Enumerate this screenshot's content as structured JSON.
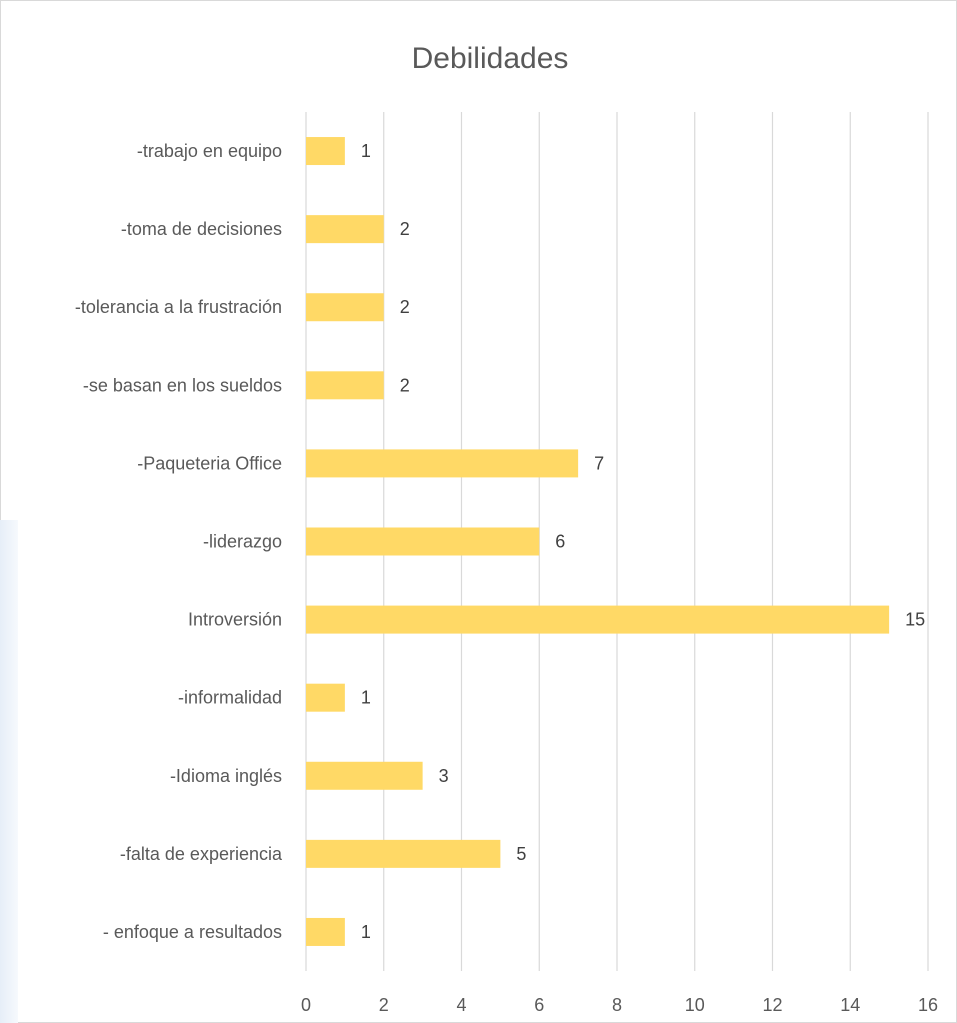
{
  "chart_data": {
    "type": "bar",
    "orientation": "horizontal",
    "title": "Debilidades",
    "categories": [
      "-trabajo en equipo",
      "-toma de decisiones",
      "-tolerancia a la frustración",
      "-se basan en los sueldos",
      "-Paqueteria Office",
      "-liderazgo",
      "Introversión",
      "-informalidad",
      "-Idioma inglés",
      "-falta de experiencia",
      "- enfoque a resultados"
    ],
    "values": [
      1,
      2,
      2,
      2,
      7,
      6,
      15,
      1,
      3,
      5,
      1
    ],
    "xlim": [
      0,
      16
    ],
    "xticks": [
      0,
      2,
      4,
      6,
      8,
      10,
      12,
      14,
      16
    ],
    "grid": "vertical",
    "legend": "none",
    "bar_color": "#ffd966",
    "data_labels": true
  }
}
